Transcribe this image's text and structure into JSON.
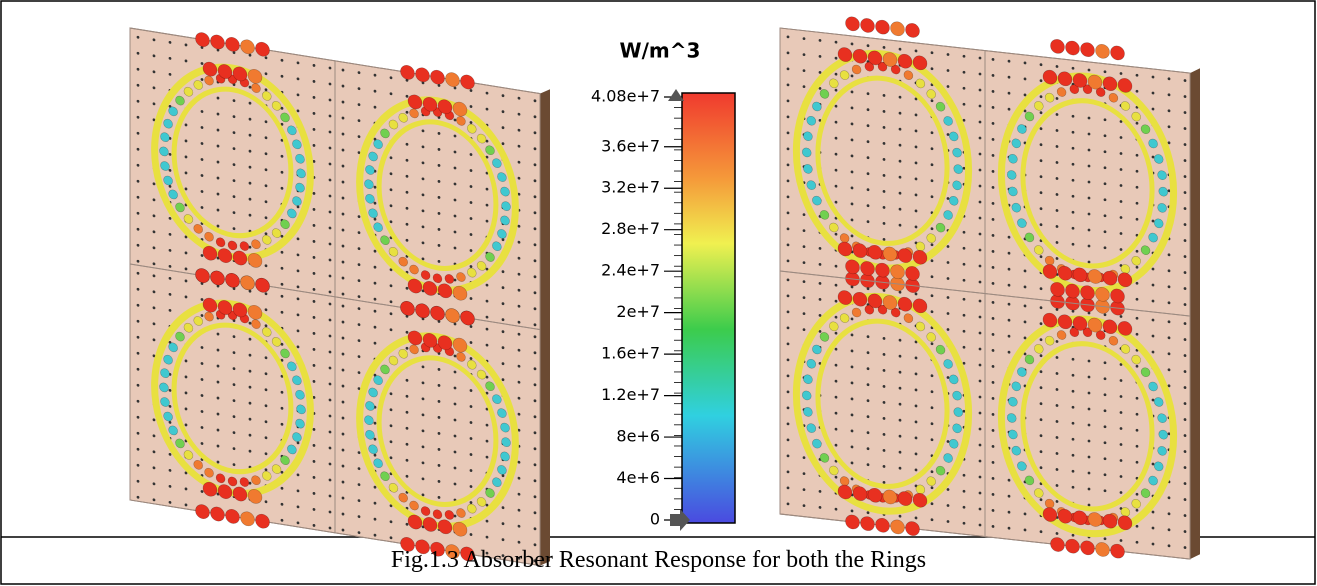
{
  "colorbar": {
    "unit": "W/m^3",
    "range": [
      0,
      40800000
    ],
    "ticks": [
      {
        "value": 40800000,
        "label": "4.08e+7"
      },
      {
        "value": 36000000,
        "label": "3.6e+7"
      },
      {
        "value": 32000000,
        "label": "3.2e+7"
      },
      {
        "value": 28000000,
        "label": "2.8e+7"
      },
      {
        "value": 24000000,
        "label": "2.4e+7"
      },
      {
        "value": 20000000,
        "label": "2e+7"
      },
      {
        "value": 16000000,
        "label": "1.6e+7"
      },
      {
        "value": 12000000,
        "label": "1.2e+7"
      },
      {
        "value": 8000000,
        "label": "8e+6"
      },
      {
        "value": 4000000,
        "label": "4e+6"
      },
      0
    ]
  },
  "caption": "Fig.1.3 Absorber Resonant Response for both the Rings"
}
